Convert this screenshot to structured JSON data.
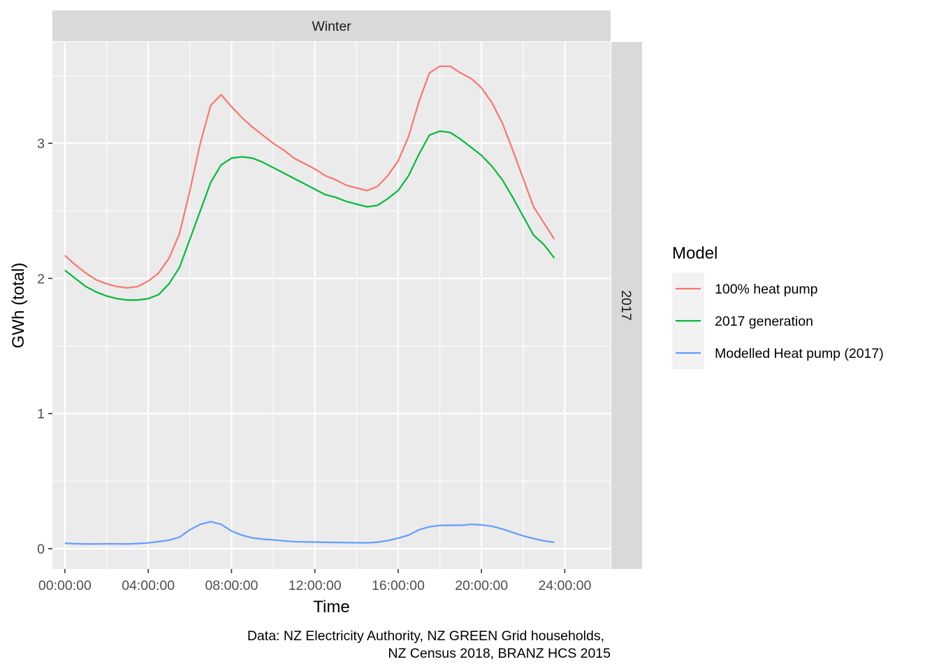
{
  "chart_data": {
    "type": "line",
    "facet": {
      "column": "Winter",
      "row": "2017"
    },
    "xlabel": "Time",
    "ylabel": "GWh (total)",
    "x_unit": "hours",
    "x_ticks": [
      {
        "value": 0,
        "label": "00:00:00"
      },
      {
        "value": 4,
        "label": "04:00:00"
      },
      {
        "value": 8,
        "label": "08:00:00"
      },
      {
        "value": 12,
        "label": "12:00:00"
      },
      {
        "value": 16,
        "label": "16:00:00"
      },
      {
        "value": 20,
        "label": "20:00:00"
      },
      {
        "value": 24,
        "label": "24:00:00"
      }
    ],
    "y_ticks": [
      {
        "value": 0,
        "label": "0"
      },
      {
        "value": 1,
        "label": "1"
      },
      {
        "value": 2,
        "label": "2"
      },
      {
        "value": 3,
        "label": "3"
      }
    ],
    "xlim": [
      -0.6,
      26.2
    ],
    "ylim": [
      -0.15,
      3.75
    ],
    "grid": true,
    "legend": {
      "title": "Model",
      "position": "right"
    },
    "x": [
      0,
      0.5,
      1,
      1.5,
      2,
      2.5,
      3,
      3.5,
      4,
      4.5,
      5,
      5.5,
      6,
      6.5,
      7,
      7.5,
      8,
      8.5,
      9,
      9.5,
      10,
      10.5,
      11,
      11.5,
      12,
      12.5,
      13,
      13.5,
      14,
      14.5,
      15,
      15.5,
      16,
      16.5,
      17,
      17.5,
      18,
      18.5,
      19,
      19.5,
      20,
      20.5,
      21,
      21.5,
      22,
      22.5,
      23,
      23.5
    ],
    "series": [
      {
        "name": "100% heat pump",
        "color": "#F8766D",
        "values": [
          2.17,
          2.1,
          2.04,
          1.99,
          1.96,
          1.94,
          1.93,
          1.94,
          1.98,
          2.04,
          2.15,
          2.33,
          2.65,
          3.0,
          3.28,
          3.36,
          3.27,
          3.19,
          3.12,
          3.06,
          3.0,
          2.95,
          2.89,
          2.85,
          2.81,
          2.76,
          2.73,
          2.69,
          2.67,
          2.65,
          2.68,
          2.76,
          2.87,
          3.05,
          3.31,
          3.52,
          3.57,
          3.57,
          3.52,
          3.48,
          3.41,
          3.3,
          3.15,
          2.95,
          2.74,
          2.53,
          2.41,
          2.29
        ]
      },
      {
        "name": "2017 generation",
        "color": "#00BA38",
        "values": [
          2.06,
          2.0,
          1.94,
          1.9,
          1.87,
          1.85,
          1.84,
          1.84,
          1.85,
          1.88,
          1.96,
          2.08,
          2.29,
          2.5,
          2.71,
          2.84,
          2.89,
          2.9,
          2.89,
          2.86,
          2.82,
          2.78,
          2.74,
          2.7,
          2.66,
          2.62,
          2.6,
          2.57,
          2.55,
          2.53,
          2.54,
          2.59,
          2.65,
          2.76,
          2.92,
          3.06,
          3.09,
          3.08,
          3.03,
          2.97,
          2.91,
          2.83,
          2.73,
          2.6,
          2.46,
          2.32,
          2.25,
          2.15
        ]
      },
      {
        "name": "Modelled Heat pump (2017)",
        "color": "#619CFF",
        "values": [
          0.04,
          0.037,
          0.035,
          0.035,
          0.036,
          0.036,
          0.035,
          0.038,
          0.043,
          0.052,
          0.063,
          0.085,
          0.14,
          0.18,
          0.2,
          0.18,
          0.13,
          0.1,
          0.08,
          0.07,
          0.065,
          0.058,
          0.052,
          0.05,
          0.049,
          0.047,
          0.046,
          0.045,
          0.044,
          0.043,
          0.048,
          0.06,
          0.078,
          0.1,
          0.14,
          0.162,
          0.172,
          0.174,
          0.173,
          0.18,
          0.176,
          0.166,
          0.146,
          0.12,
          0.095,
          0.075,
          0.058,
          0.047
        ]
      }
    ],
    "caption": [
      "Data: NZ Electricity Authority, NZ GREEN Grid households,",
      "NZ Census 2018, BRANZ HCS 2015"
    ]
  }
}
